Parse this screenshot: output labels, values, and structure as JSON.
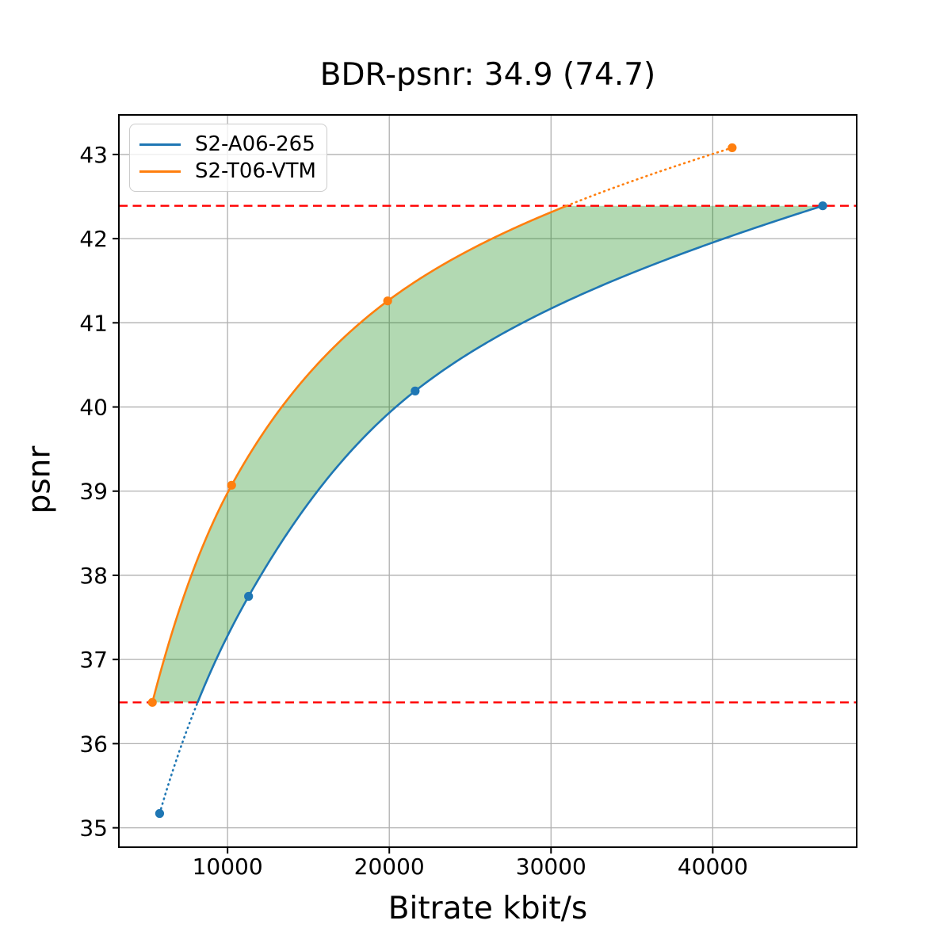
{
  "chart_data": {
    "type": "line",
    "title": "BDR-psnr: 34.9 (74.7)",
    "xlabel": "Bitrate kbit/s",
    "ylabel": "psnr",
    "xlim": [
      3280,
      48900
    ],
    "ylim": [
      34.77,
      43.47
    ],
    "xticks": [
      10000,
      20000,
      30000,
      40000
    ],
    "yticks": [
      35,
      36,
      37,
      38,
      39,
      40,
      41,
      42,
      43
    ],
    "grid": true,
    "grid_color": "#b0b0b0",
    "legend_position": "upper left",
    "series": [
      {
        "name": "S2-A06-265",
        "color": "#1f77b4",
        "x": [
          5800,
          11300,
          21600,
          46800
        ],
        "y": [
          35.17,
          37.75,
          40.19,
          42.39
        ],
        "marker": "circle",
        "note": "solid inside integration interval, dotted below psnr 36.49"
      },
      {
        "name": "S2-T06-VTM",
        "color": "#ff7f0e",
        "x": [
          5350,
          10250,
          19900,
          41200
        ],
        "y": [
          36.49,
          39.07,
          41.26,
          43.08
        ],
        "marker": "circle",
        "note": "solid inside integration interval, dotted above psnr 42.39"
      }
    ],
    "hlines": {
      "values": [
        36.49,
        42.39
      ],
      "color": "#ff0000",
      "style": "dashed",
      "meaning": "BD integration interval bounds"
    },
    "shaded_region": {
      "color": "#008000",
      "opacity": 0.3,
      "description": "area between the two rate-distortion curves clipped to psnr interval [36.49, 42.39]"
    }
  }
}
